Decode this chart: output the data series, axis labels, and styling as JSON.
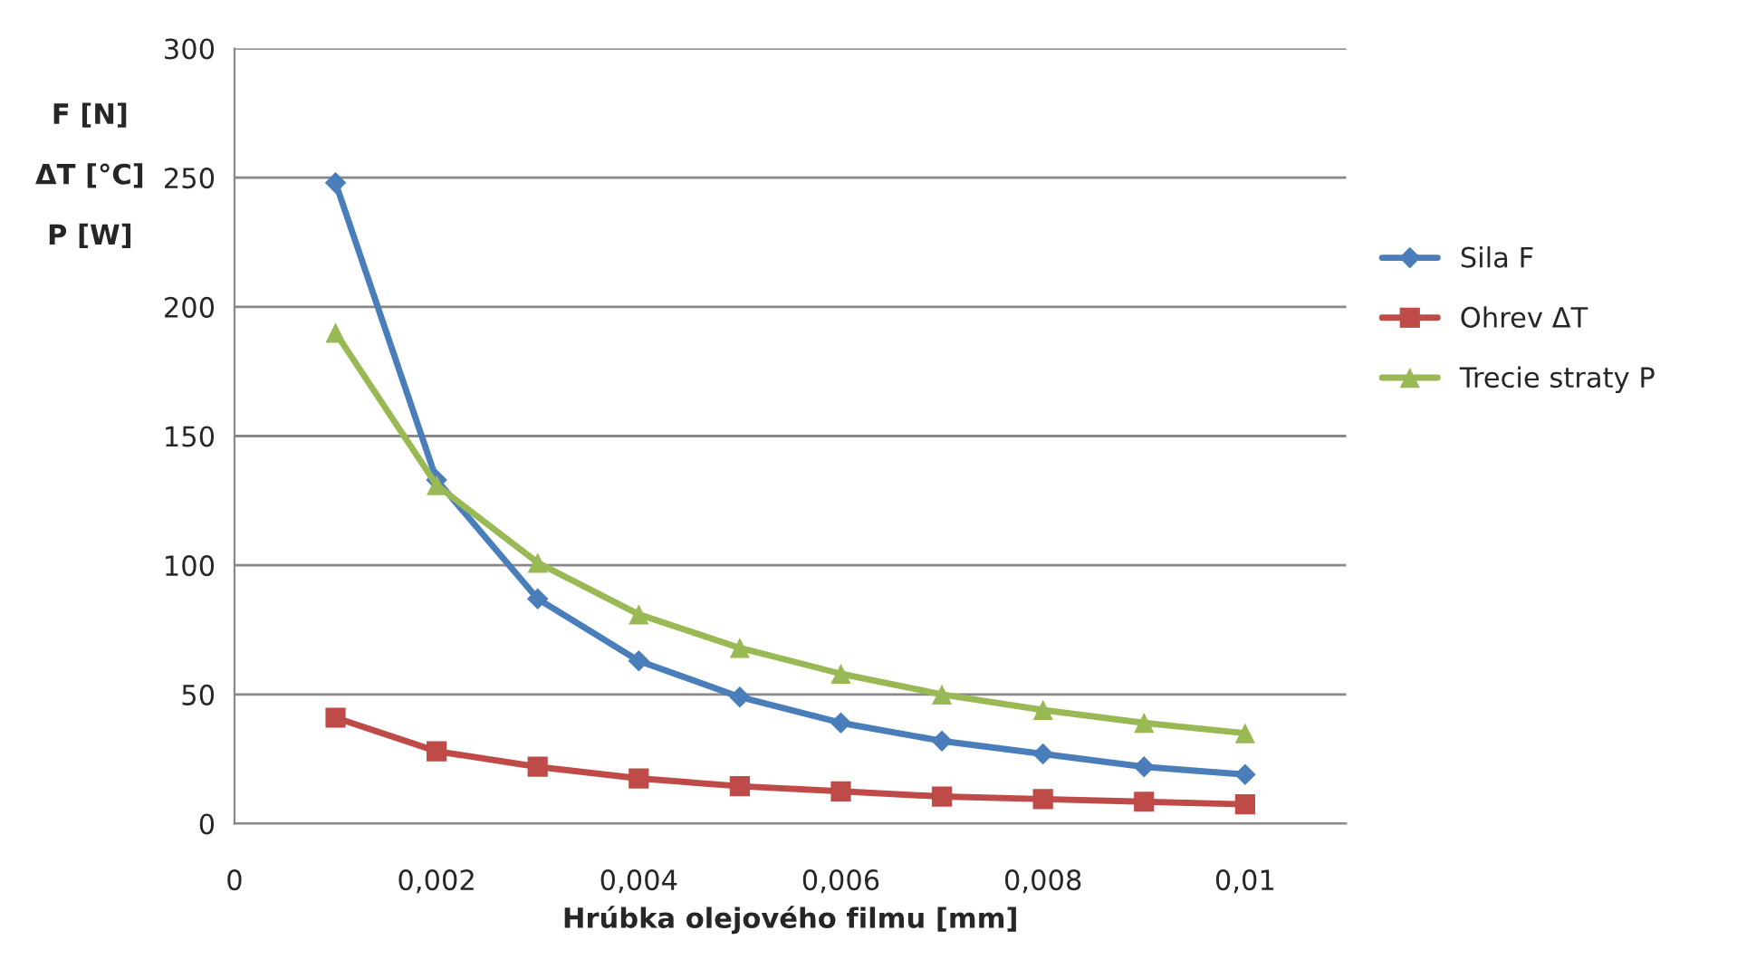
{
  "chart_data": {
    "type": "line",
    "xlabel": "Hrúbka olejového filmu [mm]",
    "ylabel": "F [N]\nΔT [°C]\nP [W]",
    "x": [
      0.001,
      0.002,
      0.003,
      0.004,
      0.005,
      0.006,
      0.007,
      0.008,
      0.009,
      0.01
    ],
    "series": [
      {
        "name": "Sila F",
        "color": "#4a7ebb",
        "marker": "diamond",
        "values": [
          248,
          133,
          87,
          63,
          49,
          39,
          32,
          27,
          22,
          19
        ]
      },
      {
        "name": "Ohrev ΔT",
        "color": "#be4b48",
        "marker": "square",
        "values": [
          41,
          28,
          22,
          17.5,
          14.5,
          12.5,
          10.5,
          9.5,
          8.5,
          7.5
        ]
      },
      {
        "name": "Trecie straty P",
        "color": "#98b954",
        "marker": "triangle",
        "values": [
          190,
          131,
          101,
          81,
          68,
          58,
          50,
          44,
          39,
          35
        ]
      }
    ],
    "xlim": [
      0,
      0.011
    ],
    "xticks": [
      0,
      {
        "value": 0.002,
        "label": "0,002"
      },
      {
        "value": 0.004,
        "label": "0,004"
      },
      {
        "value": 0.006,
        "label": "0,006"
      },
      {
        "value": 0.008,
        "label": "0,008"
      },
      {
        "value": 0.01,
        "label": "0,01"
      }
    ],
    "ylim": [
      0,
      300
    ],
    "yticks": [
      0,
      50,
      100,
      150,
      200,
      250,
      300
    ],
    "grid": "y",
    "legend": "right",
    "line_style": "solid"
  }
}
